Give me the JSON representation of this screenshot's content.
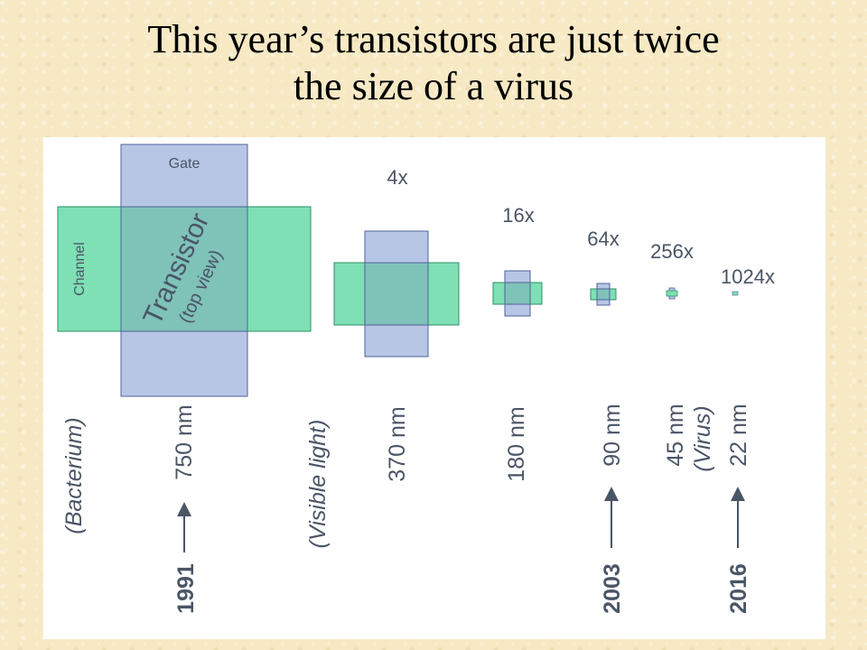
{
  "title": {
    "line1": "This year’s transistors are just twice",
    "line2": "the size of a virus"
  },
  "diagram": {
    "gate_label": "Gate",
    "channel_label": "Channel",
    "transistor_label": "Transistor",
    "top_view_label": "(top view)",
    "colors": {
      "gate": "#b8c6e6",
      "channel": "#7ee0b4",
      "overlap": "#7fc2b8",
      "outline": "#4f6399",
      "text": "#4a5566"
    },
    "multipliers": [
      "4x",
      "16x",
      "64x",
      "256x",
      "1024x"
    ],
    "scale_labels": {
      "bacterium": "(Bacterium)",
      "size_750": "750 nm",
      "year_1991": "1991",
      "visible_light": "(Visible light)",
      "size_370": "370 nm",
      "size_180": "180 nm",
      "size_90": "90 nm",
      "year_2003": "2003",
      "size_45": "45 nm",
      "virus": "(Virus)",
      "size_22": "22 nm",
      "year_2016": "2016"
    }
  }
}
